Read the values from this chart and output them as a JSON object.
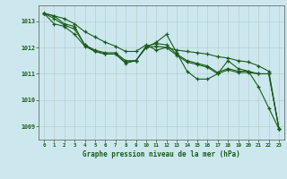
{
  "title": "Graphe pression niveau de la mer (hPa)",
  "background_color": "#cce8ee",
  "plot_bg_color": "#cce8ee",
  "grid_color": "#bbcccc",
  "line_color": "#1a5c1a",
  "xlim": [
    -0.5,
    23.5
  ],
  "ylim": [
    1008.5,
    1013.6
  ],
  "yticks": [
    1009,
    1010,
    1011,
    1012,
    1013
  ],
  "xticks": [
    0,
    1,
    2,
    3,
    4,
    5,
    6,
    7,
    8,
    9,
    10,
    11,
    12,
    13,
    14,
    15,
    16,
    17,
    18,
    19,
    20,
    21,
    22,
    23
  ],
  "series": [
    [
      1013.3,
      1013.2,
      1012.9,
      1012.8,
      1012.1,
      1011.9,
      1011.8,
      1011.8,
      1011.5,
      1011.5,
      1012.0,
      1012.2,
      1012.5,
      1011.8,
      1011.1,
      1010.8,
      1010.8,
      1011.0,
      1011.5,
      1011.2,
      1011.1,
      1010.5,
      1009.7,
      1008.9
    ],
    [
      1013.3,
      1013.1,
      1012.85,
      1012.7,
      1012.1,
      1011.85,
      1011.75,
      1011.75,
      1011.45,
      1011.5,
      1012.05,
      1012.15,
      1012.1,
      1011.75,
      1011.5,
      1011.4,
      1011.3,
      1011.05,
      1011.2,
      1011.1,
      1011.1,
      1011.0,
      1011.0,
      1008.9
    ],
    [
      1013.3,
      1012.9,
      1012.8,
      1012.5,
      1012.05,
      1011.85,
      1011.75,
      1011.75,
      1011.4,
      1011.5,
      1012.0,
      1012.05,
      1012.0,
      1011.7,
      1011.45,
      1011.35,
      1011.25,
      1011.0,
      1011.15,
      1011.05,
      1011.05,
      1011.0,
      1011.0,
      1008.9
    ],
    [
      1013.3,
      1013.2,
      1013.1,
      1012.9,
      1012.6,
      1012.4,
      1012.2,
      1012.05,
      1011.85,
      1011.85,
      1012.1,
      1011.9,
      1012.0,
      1011.9,
      1011.85,
      1011.8,
      1011.75,
      1011.65,
      1011.6,
      1011.5,
      1011.45,
      1011.3,
      1011.1,
      1008.9
    ]
  ]
}
